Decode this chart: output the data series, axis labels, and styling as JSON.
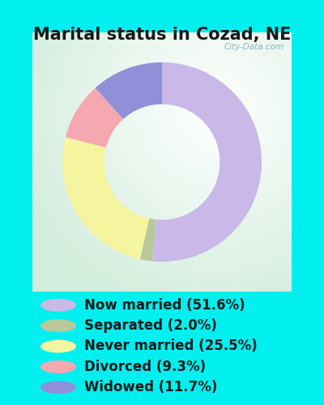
{
  "title": "Marital status in Cozad, NE",
  "slices": [
    {
      "label": "Now married (51.6%)",
      "value": 51.6,
      "color": "#c9b8e8"
    },
    {
      "label": "Separated (2.0%)",
      "value": 2.0,
      "color": "#b8c89a"
    },
    {
      "label": "Never married (25.5%)",
      "value": 25.5,
      "color": "#f5f5a0"
    },
    {
      "label": "Divorced (9.3%)",
      "value": 9.3,
      "color": "#f5a8b0"
    },
    {
      "label": "Widowed (11.7%)",
      "value": 11.7,
      "color": "#9090d8"
    }
  ],
  "bg_outer": "#00f0f0",
  "watermark": "City-Data.com",
  "title_fontsize": 15,
  "legend_fontsize": 12
}
